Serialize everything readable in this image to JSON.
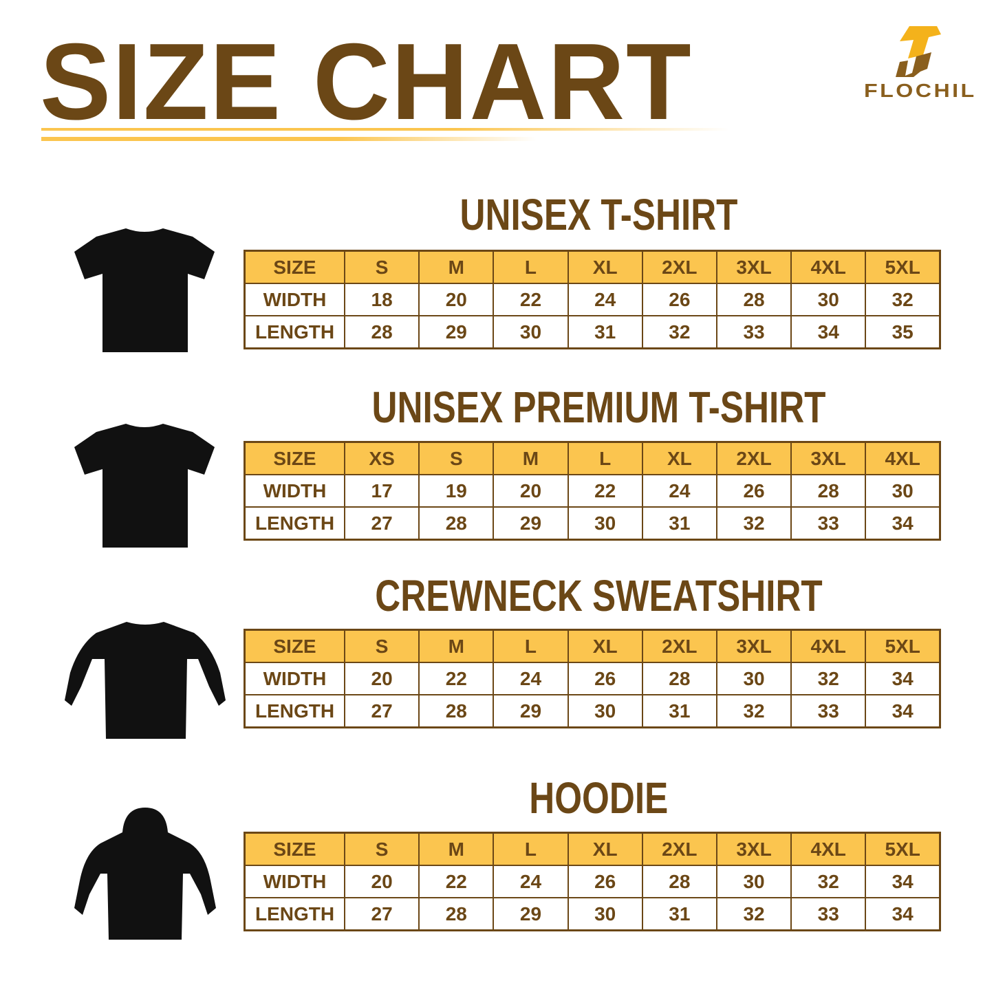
{
  "header": {
    "title": "SIZE CHART",
    "brand": "FLOCHIL"
  },
  "colors": {
    "brown": "#6b4716",
    "yellow": "#fbc54f",
    "garment": "#111111"
  },
  "sections": [
    {
      "title": "UNISEX T-SHIRT",
      "icon": "tshirt-icon",
      "rows": [
        [
          "SIZE",
          "S",
          "M",
          "L",
          "XL",
          "2XL",
          "3XL",
          "4XL",
          "5XL"
        ],
        [
          "WIDTH",
          "18",
          "20",
          "22",
          "24",
          "26",
          "28",
          "30",
          "32"
        ],
        [
          "LENGTH",
          "28",
          "29",
          "30",
          "31",
          "32",
          "33",
          "34",
          "35"
        ]
      ]
    },
    {
      "title": "UNISEX PREMIUM T-SHIRT",
      "icon": "tshirt-icon",
      "rows": [
        [
          "SIZE",
          "XS",
          "S",
          "M",
          "L",
          "XL",
          "2XL",
          "3XL",
          "4XL"
        ],
        [
          "WIDTH",
          "17",
          "19",
          "20",
          "22",
          "24",
          "26",
          "28",
          "30"
        ],
        [
          "LENGTH",
          "27",
          "28",
          "29",
          "30",
          "31",
          "32",
          "33",
          "34"
        ]
      ]
    },
    {
      "title": "CREWNECK SWEATSHIRT",
      "icon": "sweatshirt-icon",
      "rows": [
        [
          "SIZE",
          "S",
          "M",
          "L",
          "XL",
          "2XL",
          "3XL",
          "4XL",
          "5XL"
        ],
        [
          "WIDTH",
          "20",
          "22",
          "24",
          "26",
          "28",
          "30",
          "32",
          "34"
        ],
        [
          "LENGTH",
          "27",
          "28",
          "29",
          "30",
          "31",
          "32",
          "33",
          "34"
        ]
      ]
    },
    {
      "title": "HOODIE",
      "icon": "hoodie-icon",
      "rows": [
        [
          "SIZE",
          "S",
          "M",
          "L",
          "XL",
          "2XL",
          "3XL",
          "4XL",
          "5XL"
        ],
        [
          "WIDTH",
          "20",
          "22",
          "24",
          "26",
          "28",
          "30",
          "32",
          "34"
        ],
        [
          "LENGTH",
          "27",
          "28",
          "29",
          "30",
          "31",
          "32",
          "33",
          "34"
        ]
      ]
    }
  ]
}
